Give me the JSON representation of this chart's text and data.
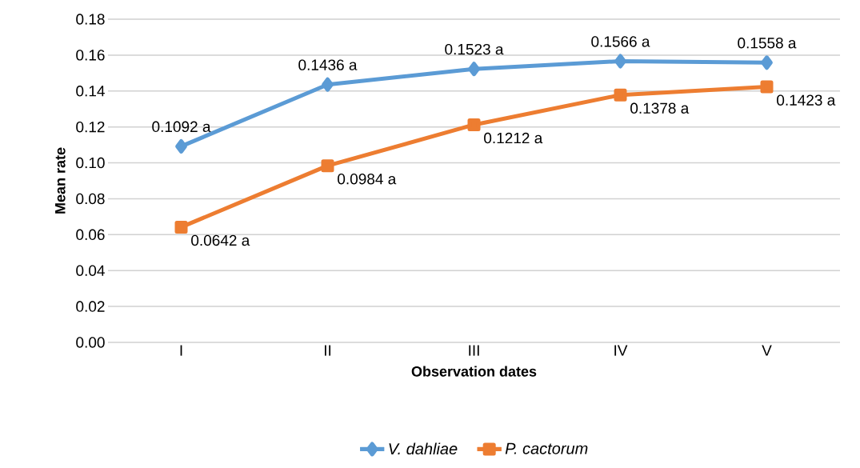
{
  "chart_data": {
    "type": "line",
    "xlabel": "Observation dates",
    "ylabel": "Mean rate",
    "categories": [
      "I",
      "II",
      "III",
      "IV",
      "V"
    ],
    "series": [
      {
        "name": "V. dahliae",
        "color": "#5b9bd5",
        "marker": "diamond",
        "values": [
          0.1092,
          0.1436,
          0.1523,
          0.1566,
          0.1558
        ],
        "value_labels": [
          "0.1092 a",
          "0.1436 a",
          "0.1523 a",
          "0.1566 a",
          "0.1558 a"
        ]
      },
      {
        "name": "P. cactorum",
        "color": "#ed7d31",
        "marker": "square",
        "values": [
          0.0642,
          0.0984,
          0.1212,
          0.1378,
          0.1423
        ],
        "value_labels": [
          "0.0642 a",
          "0.0984 a",
          "0.1212 a",
          "0.1378 a",
          "0.1423 a"
        ]
      }
    ],
    "ylim": [
      0,
      0.18
    ],
    "yticks": [
      "0.00",
      "0.02",
      "0.04",
      "0.06",
      "0.08",
      "0.10",
      "0.12",
      "0.14",
      "0.16",
      "0.18"
    ],
    "grid": "y",
    "legend": "bottom",
    "line_style": "solid"
  }
}
